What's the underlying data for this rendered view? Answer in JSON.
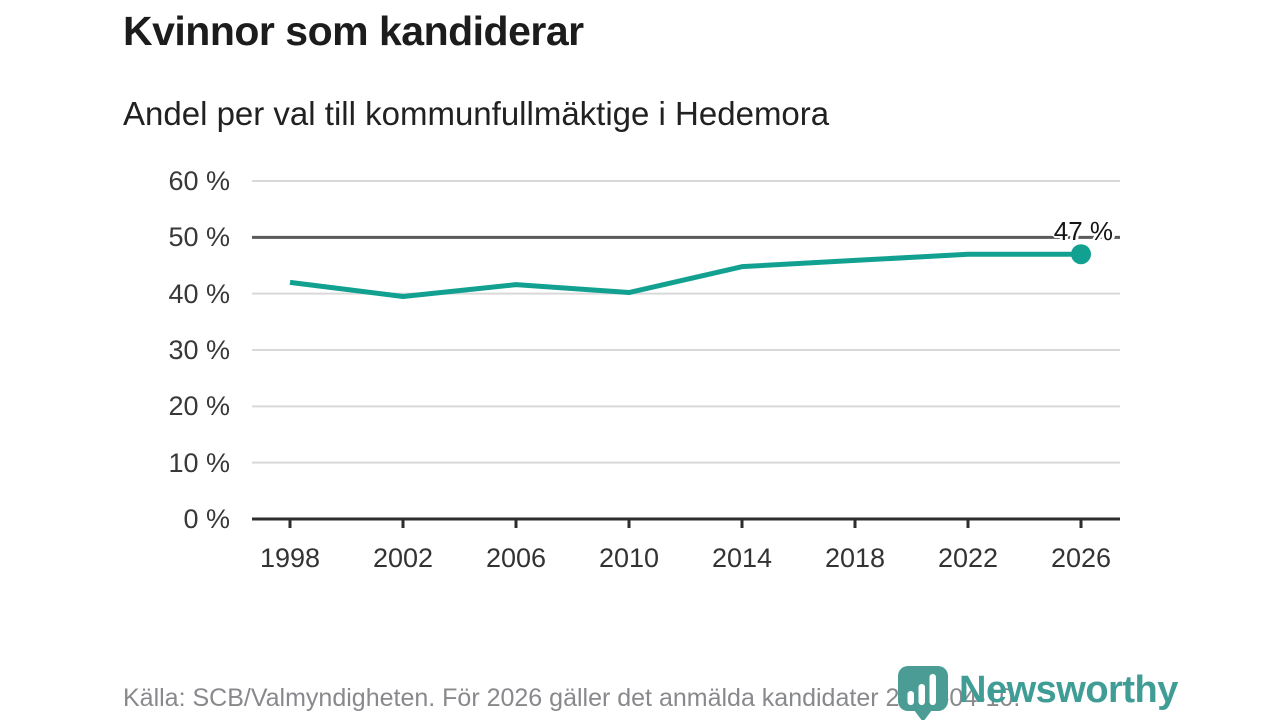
{
  "header": {
    "title": "Kvinnor som kandiderar",
    "subtitle": "Andel per val till kommunfullmäktige i Hedemora"
  },
  "chart_data": {
    "type": "line",
    "title": "Kvinnor som kandiderar",
    "subtitle": "Andel per val till kommunfullmäktige i Hedemora",
    "categories": [
      "1998",
      "2002",
      "2006",
      "2010",
      "2014",
      "2018",
      "2022",
      "2026"
    ],
    "values": [
      42,
      39.5,
      41.6,
      40.2,
      44.8,
      45.9,
      47,
      47
    ],
    "unit": "%",
    "ylim": [
      0,
      60
    ],
    "yticks": [
      60,
      50,
      40,
      30,
      20,
      10,
      0
    ],
    "ytick_labels": [
      "60 %",
      "50 %",
      "40 %",
      "30 %",
      "20 %",
      "10 %",
      "0 %"
    ],
    "grid": "horizontal",
    "reference_line": 50,
    "end_label": "47 %",
    "legend": "none"
  },
  "footer": {
    "source": "Källa: SCB/Valmyndigheten. För 2026 gäller det anmälda kandidater 2026-04-10."
  },
  "logo": {
    "name": "Newsworthy",
    "icon": "newsworthy-pin-icon"
  },
  "colors": {
    "line": "#12a191",
    "logo": "#4a9c95",
    "grid": "#d9d9d9",
    "reference_line": "#595a5c",
    "axis": "#2e2e30",
    "title_text": "#1c1c1c",
    "tick_text": "#38383a",
    "footer_text": "#88898c",
    "annotation_text": "#161616"
  }
}
